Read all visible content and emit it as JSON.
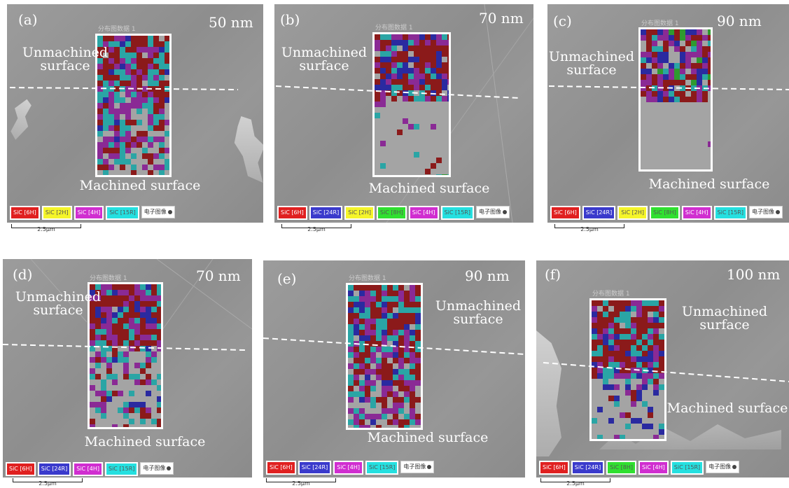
{
  "colors": {
    "SiC [6H]": "#8b1a1a",
    "SiC [24R]": "#2a2aa0",
    "SiC [2H]": "#b8b830",
    "SiC [15R]": "#2aa5a5",
    "SiC [4H]": "#8a2a95",
    "SiC [8H]": "#2f9a2f"
  },
  "chip_colors": {
    "SiC [6H]": "#e02020",
    "SiC [24R]": "#3a3acc",
    "SiC [2H]": "#f5f52a",
    "SiC [15R]": "#25e0e0",
    "SiC [4H]": "#d02ed0",
    "SiC [8H]": "#30e030"
  },
  "scale_text": "2.5μm",
  "map_title": "分布图数据 1",
  "panels": [
    {
      "id": "a",
      "label": "(a)",
      "depth": "50 nm",
      "unmachined": [
        "Unmachined",
        "surface"
      ],
      "machined": "Machined surface",
      "legend": [
        "SiC [6H]",
        "SiC [2H]",
        "SiC [4H]",
        "SiC [15R]",
        "电子图像"
      ],
      "mix": {
        "top": {
          "SiC [6H]": 0.45,
          "SiC [15R]": 0.3,
          "SiC [4H]": 0.2,
          "SiC [24R]": 0.05
        },
        "bottom": {
          "SiC [4H]": 0.35,
          "SiC [15R]": 0.3,
          "SiC [6H]": 0.3,
          "SiC [24R]": 0.05
        },
        "split": 0.35,
        "density_top": 0.98,
        "density_bottom": 0.95
      }
    },
    {
      "id": "b",
      "label": "(b)",
      "depth": "70 nm",
      "unmachined": [
        "Unmachined",
        "surface"
      ],
      "machined": "Machined surface",
      "legend": [
        "SiC [6H]",
        "SiC [24R]",
        "SiC [2H]",
        "SiC [8H]",
        "SiC [4H]",
        "SiC [15R]",
        "电子图像"
      ],
      "mix": {
        "top": {
          "SiC [6H]": 0.4,
          "SiC [24R]": 0.2,
          "SiC [4H]": 0.25,
          "SiC [15R]": 0.15
        },
        "bottom": {
          "SiC [4H]": 0.4,
          "SiC [15R]": 0.3,
          "SiC [6H]": 0.2,
          "SiC [8H]": 0.1
        },
        "split": 0.45,
        "density_top": 0.95,
        "density_bottom": 0.12
      }
    },
    {
      "id": "c",
      "label": "(c)",
      "depth": "90 nm",
      "unmachined": [
        "Unmachined",
        "surface"
      ],
      "machined": "Machined surface",
      "legend": [
        "SiC [6H]",
        "SiC [24R]",
        "SiC [2H]",
        "SiC [8H]",
        "SiC [4H]",
        "SiC [15R]",
        "电子图像"
      ],
      "mix": {
        "top": {
          "SiC [6H]": 0.4,
          "SiC [24R]": 0.2,
          "SiC [4H]": 0.25,
          "SiC [15R]": 0.1,
          "SiC [8H]": 0.05
        },
        "bottom": {
          "SiC [6H]": 0.5,
          "SiC [4H]": 0.3,
          "SiC [15R]": 0.2
        },
        "split": 0.5,
        "density_top": 0.9,
        "density_bottom": 0.02
      }
    },
    {
      "id": "d",
      "label": "(d)",
      "depth": "70 nm",
      "unmachined": [
        "Unmachined",
        "surface"
      ],
      "machined": "Machined surface",
      "legend": [
        "SiC [6H]",
        "SiC [24R]",
        "SiC [4H]",
        "SiC [15R]",
        "电子图像"
      ],
      "mix": {
        "top": {
          "SiC [6H]": 0.5,
          "SiC [4H]": 0.25,
          "SiC [15R]": 0.15,
          "SiC [24R]": 0.1
        },
        "bottom": {
          "SiC [4H]": 0.35,
          "SiC [15R]": 0.3,
          "SiC [6H]": 0.25,
          "SiC [24R]": 0.1
        },
        "split": 0.42,
        "density_top": 0.97,
        "density_bottom": 0.55
      }
    },
    {
      "id": "e",
      "label": "(e)",
      "depth": "90 nm",
      "unmachined": [
        "Unmachined",
        "surface"
      ],
      "machined": "Machined surface",
      "legend": [
        "SiC [6H]",
        "SiC [24R]",
        "SiC [4H]",
        "SiC [15R]",
        "电子图像"
      ],
      "mix": {
        "top": {
          "SiC [6H]": 0.4,
          "SiC [15R]": 0.3,
          "SiC [4H]": 0.2,
          "SiC [24R]": 0.1
        },
        "bottom": {
          "SiC [6H]": 0.35,
          "SiC [4H]": 0.35,
          "SiC [15R]": 0.25,
          "SiC [24R]": 0.05
        },
        "split": 0.4,
        "density_top": 0.97,
        "density_bottom": 0.92
      }
    },
    {
      "id": "f",
      "label": "(f)",
      "depth": "100 nm",
      "unmachined": [
        "Unmachined",
        "surface"
      ],
      "machined": "Machined surface",
      "legend": [
        "SiC [6H]",
        "SiC [24R]",
        "SiC [8H]",
        "SiC [4H]",
        "SiC [15R]",
        "电子图像"
      ],
      "mix": {
        "top": {
          "SiC [6H]": 0.5,
          "SiC [15R]": 0.2,
          "SiC [4H]": 0.2,
          "SiC [24R]": 0.1
        },
        "bottom": {
          "SiC [4H]": 0.35,
          "SiC [24R]": 0.25,
          "SiC [15R]": 0.2,
          "SiC [6H]": 0.2
        },
        "split": 0.55,
        "density_top": 0.95,
        "density_bottom": 0.25
      }
    }
  ]
}
